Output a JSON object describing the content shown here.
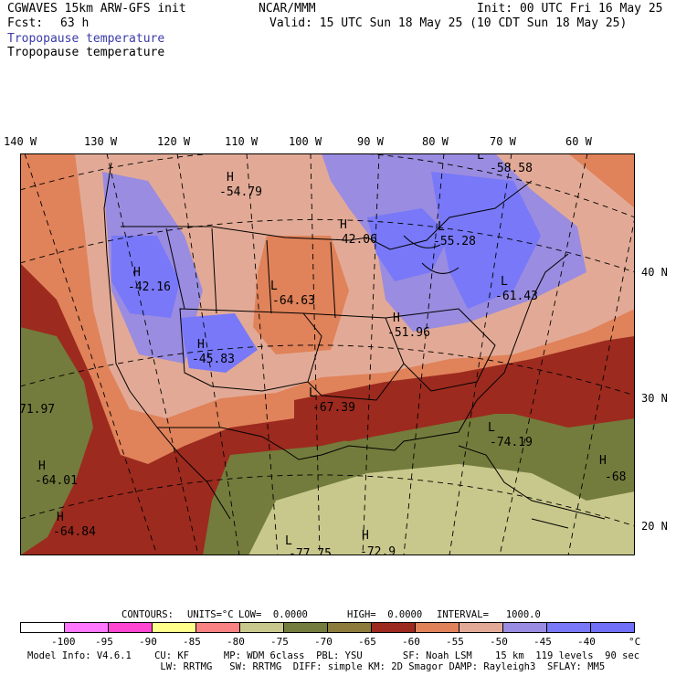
{
  "header": {
    "model_title": "CGWAVES 15km ARW-GFS init",
    "org": "NCAR/MMM",
    "init_line": "Init: 00 UTC Fri 16 May 25",
    "fcst_label": "Fcst:",
    "fcst_value": "63 h",
    "valid_line": "Valid: 15 UTC Sun 18 May 25 (10 CDT Sun 18 May 25)",
    "field_title_shaded": "Tropopause temperature",
    "field_title_contour": "Tropopause temperature"
  },
  "map": {
    "longitude_labels": [
      "140 W",
      "130 W",
      "120 W",
      "110 W",
      "100 W",
      "90 W",
      "80 W",
      "70 W",
      "60 W"
    ],
    "latitude_labels": [
      "40 N",
      "30 N",
      "20 N"
    ],
    "extrema": [
      {
        "type": "H",
        "value": "-54.79"
      },
      {
        "type": "H",
        "value": "-42.16"
      },
      {
        "type": "H",
        "value": "-45.83"
      },
      {
        "type": "H",
        "value": "-42.06"
      },
      {
        "type": "L",
        "value": "-55.28"
      },
      {
        "type": "L",
        "value": "-58.58"
      },
      {
        "type": "L",
        "value": "-64.63"
      },
      {
        "type": "H",
        "value": "-51.96"
      },
      {
        "type": "L",
        "value": "-61.43"
      },
      {
        "type": "L",
        "value": "-67.39"
      },
      {
        "type": "L",
        "value": "-74.19"
      },
      {
        "type": "",
        "value": "71.97"
      },
      {
        "type": "H",
        "value": "-64.01"
      },
      {
        "type": "H",
        "value": "-64.84"
      },
      {
        "type": "H",
        "value": "-68"
      },
      {
        "type": "L",
        "value": "-77.75"
      },
      {
        "type": "H",
        "value": "-72.9"
      }
    ]
  },
  "contours": {
    "label": "CONTOURS:",
    "units": "UNITS=°C",
    "low": "LOW=  0.0000",
    "high": "HIGH=  0.0000",
    "interval": "INTERVAL=   1000.0"
  },
  "colorbar": {
    "colors": [
      "#ffffff",
      "#ff78ff",
      "#ff46d2",
      "#ffff8c",
      "#fa8282",
      "#c8c88c",
      "#737c3c",
      "#8c7c3c",
      "#9c2a1e",
      "#e0825a",
      "#e2aa96",
      "#9a8ce0",
      "#7878f8",
      "#7070f8"
    ],
    "ticks": [
      "-100",
      "-95",
      "-90",
      "-85",
      "-80",
      "-75",
      "-70",
      "-65",
      "-60",
      "-55",
      "-50",
      "-45",
      "-40"
    ],
    "unit": "°C"
  },
  "model_info": {
    "line1": "Model Info: V4.6.1    CU: KF      MP: WDM 6class  PBL: YSU       SF: Noah LSM    15 km  119 levels  90 sec",
    "line2": "                       LW: RRTMG   SW: RRTMG  DIFF: simple KM: 2D Smagor DAMP: Rayleigh3  SFLAY: MM5"
  }
}
